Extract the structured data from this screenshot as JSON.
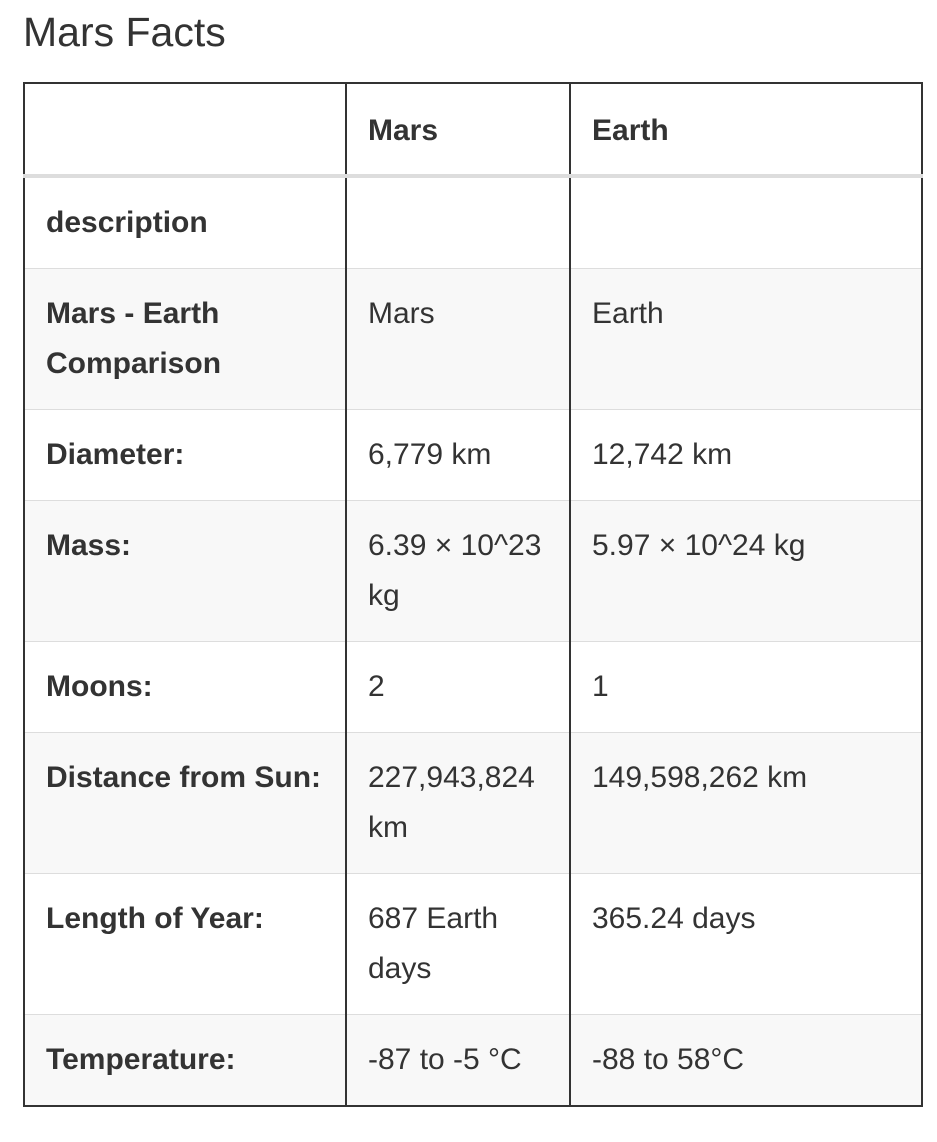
{
  "page": {
    "title": "Mars Facts"
  },
  "table": {
    "headers": [
      "",
      "Mars",
      "Earth"
    ],
    "rows": [
      {
        "label": "description",
        "mars": "",
        "earth": ""
      },
      {
        "label": "Mars - Earth Comparison",
        "mars": "Mars",
        "earth": "Earth"
      },
      {
        "label": "Diameter:",
        "mars": "6,779 km",
        "earth": "12,742 km"
      },
      {
        "label": "Mass:",
        "mars": "6.39 × 10^23 kg",
        "earth": "5.97 × 10^24 kg"
      },
      {
        "label": "Moons:",
        "mars": "2",
        "earth": "1"
      },
      {
        "label": "Distance from Sun:",
        "mars": "227,943,824 km",
        "earth": "149,598,262 km"
      },
      {
        "label": "Length of Year:",
        "mars": "687 Earth days",
        "earth": "365.24 days"
      },
      {
        "label": "Temperature:",
        "mars": "-87 to -5 °C",
        "earth": "-88 to 58°C"
      }
    ]
  },
  "colors": {
    "text": "#333333",
    "border": "#333333",
    "row_divider": "#dddddd",
    "striped_row": "#f8f8f8"
  }
}
